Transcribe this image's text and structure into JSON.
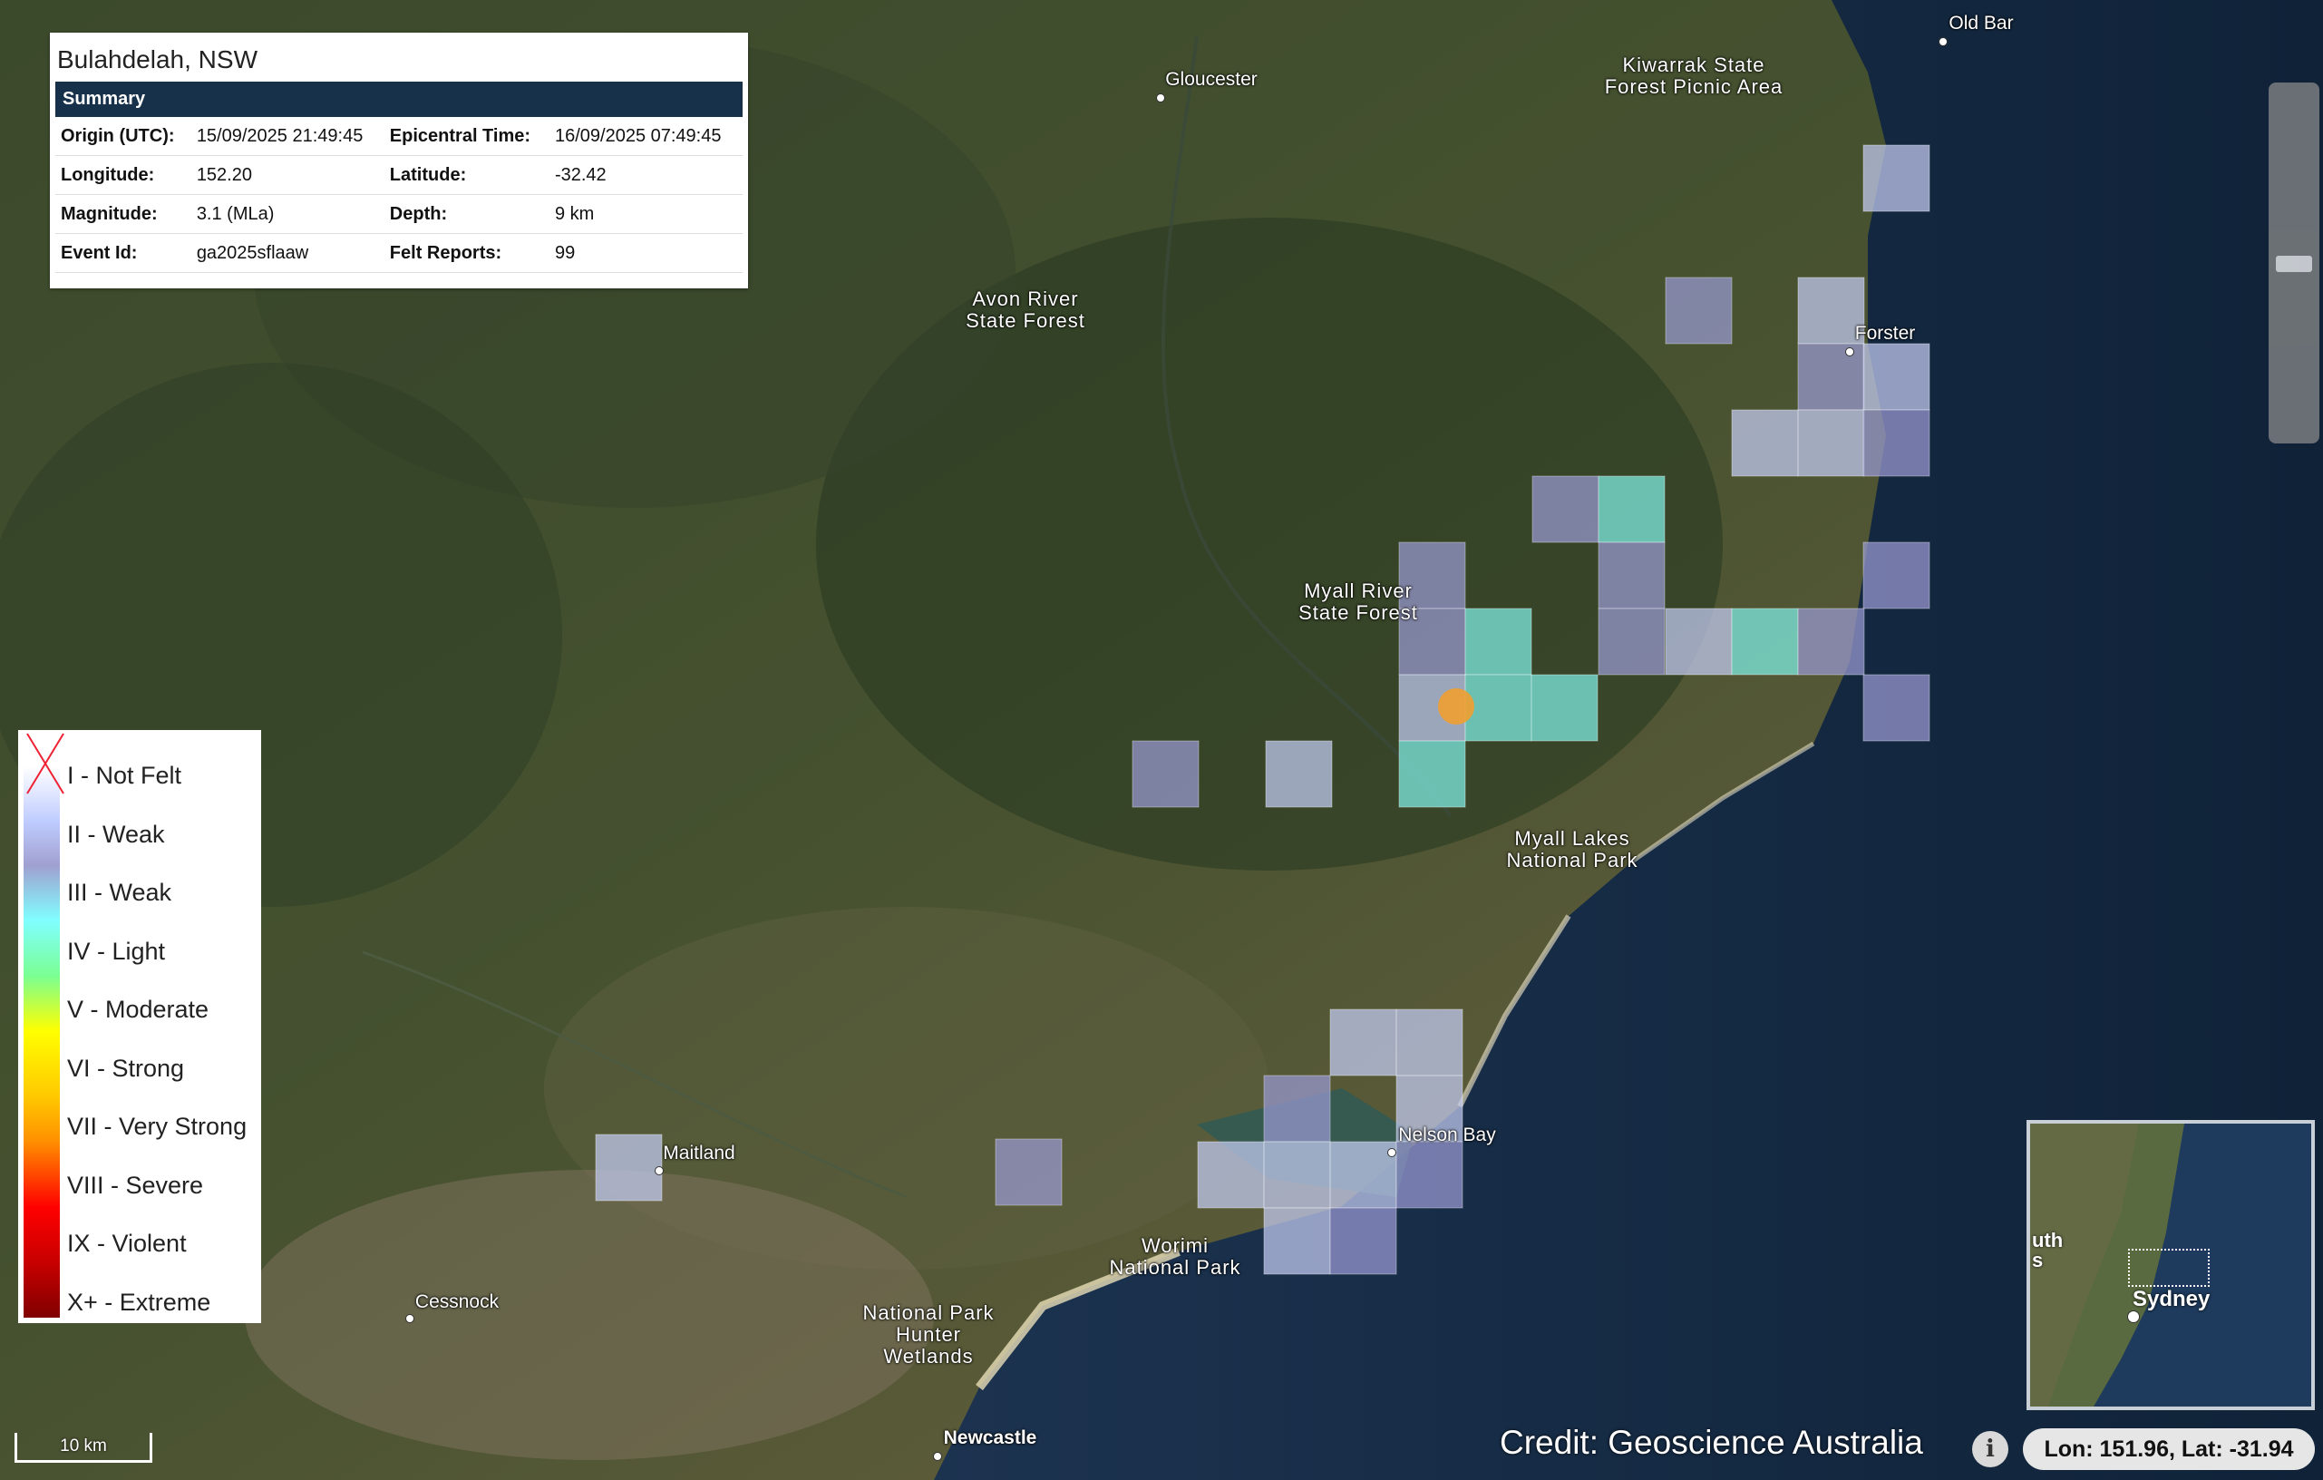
{
  "summary": {
    "title": "Bulahdelah, NSW",
    "header": "Summary",
    "rows": [
      {
        "k1": "Origin (UTC):",
        "v1": "15/09/2025 21:49:45",
        "k2": "Epicentral Time:",
        "v2": "16/09/2025 07:49:45"
      },
      {
        "k1": "Longitude:",
        "v1": "152.20",
        "k2": "Latitude:",
        "v2": "-32.42"
      },
      {
        "k1": "Magnitude:",
        "v1": "3.1 (MLa)",
        "k2": "Depth:",
        "v2": "9 km"
      },
      {
        "k1": "Event Id:",
        "v1": "ga2025sflaaw",
        "k2": "Felt Reports:",
        "v2": "99"
      }
    ]
  },
  "legend": [
    "I - Not Felt",
    "II - Weak",
    "III - Weak",
    "IV - Light",
    "V - Moderate",
    "VI - Strong",
    "VII - Very Strong",
    "VIII - Severe",
    "IX - Violent",
    "X+ - Extreme"
  ],
  "places": {
    "old_bar": "Old Bar",
    "gloucester": "Gloucester",
    "kiwarrak": "Kiwarrak State\nForest Picnic Area",
    "forster": "Forster",
    "avon": "Avon River\nState Forest",
    "myall_river": "Myall River\nState Forest",
    "myall_lakes": "Myall Lakes\nNational Park",
    "maitland": "Maitland",
    "nelson_bay": "Nelson Bay",
    "worimi": "Worimi\nNational Park",
    "cessnock": "Cessnock",
    "hunter": "National Park\nHunter\nWetlands",
    "newcastle": "Newcastle"
  },
  "scale": "10 km",
  "credit": "Credit: Geoscience Australia",
  "info_icon": "i",
  "coords": "Lon: 151.96, Lat: -31.94",
  "inset": {
    "label": "Sydney",
    "cut_label": "uth\ns"
  },
  "intensity_colors": {
    "II": "#c3ccf2",
    "III": "#9a9ad2",
    "IV": "#80f0e6"
  },
  "epicentre_color": "#f0a030"
}
